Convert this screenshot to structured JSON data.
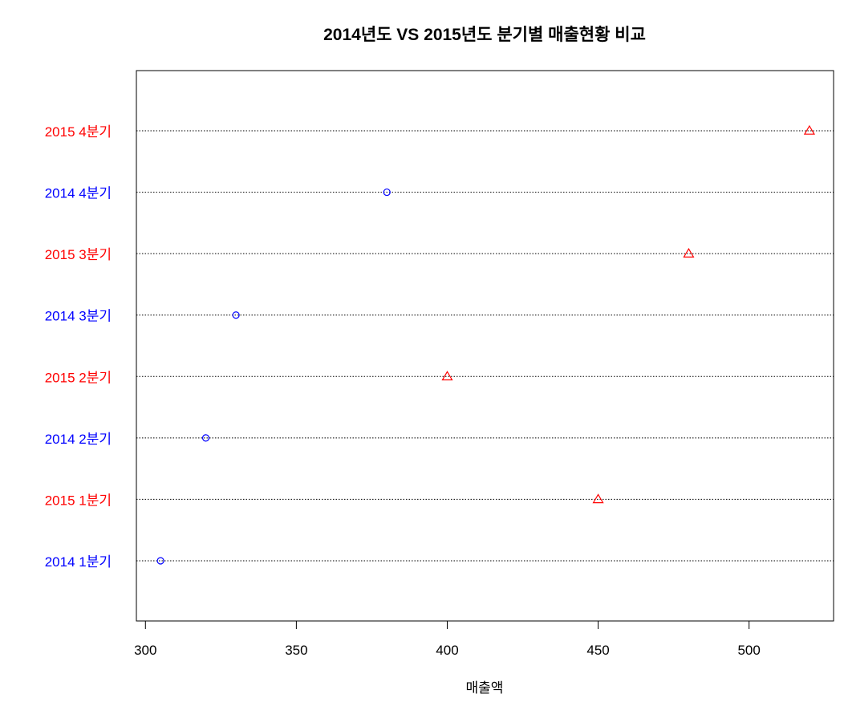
{
  "chart_data": {
    "type": "scatter",
    "title": "2014년도 VS 2015년도 분기별 매출현황 비교",
    "xlabel": "매출액",
    "ylabel": "",
    "xlim": [
      297,
      528
    ],
    "xticks": [
      300,
      350,
      400,
      450,
      500
    ],
    "grid": "dotted horizontal lines at each category",
    "categories": [
      "2014 1분기",
      "2015 1분기",
      "2014 2분기",
      "2015 2분기",
      "2014 3분기",
      "2015 3분기",
      "2014 4분기",
      "2015 4분기"
    ],
    "points": [
      {
        "label": "2014 1분기",
        "value": 305,
        "marker": "circle",
        "color": "#0000ff"
      },
      {
        "label": "2015 1분기",
        "value": 450,
        "marker": "triangle",
        "color": "#ff0000"
      },
      {
        "label": "2014 2분기",
        "value": 320,
        "marker": "circle",
        "color": "#0000ff"
      },
      {
        "label": "2015 2분기",
        "value": 400,
        "marker": "triangle",
        "color": "#ff0000"
      },
      {
        "label": "2014 3분기",
        "value": 330,
        "marker": "circle",
        "color": "#0000ff"
      },
      {
        "label": "2015 3분기",
        "value": 480,
        "marker": "triangle",
        "color": "#ff0000"
      },
      {
        "label": "2014 4분기",
        "value": 380,
        "marker": "circle",
        "color": "#0000ff"
      },
      {
        "label": "2015 4분기",
        "value": 520,
        "marker": "triangle",
        "color": "#ff0000"
      }
    ]
  }
}
